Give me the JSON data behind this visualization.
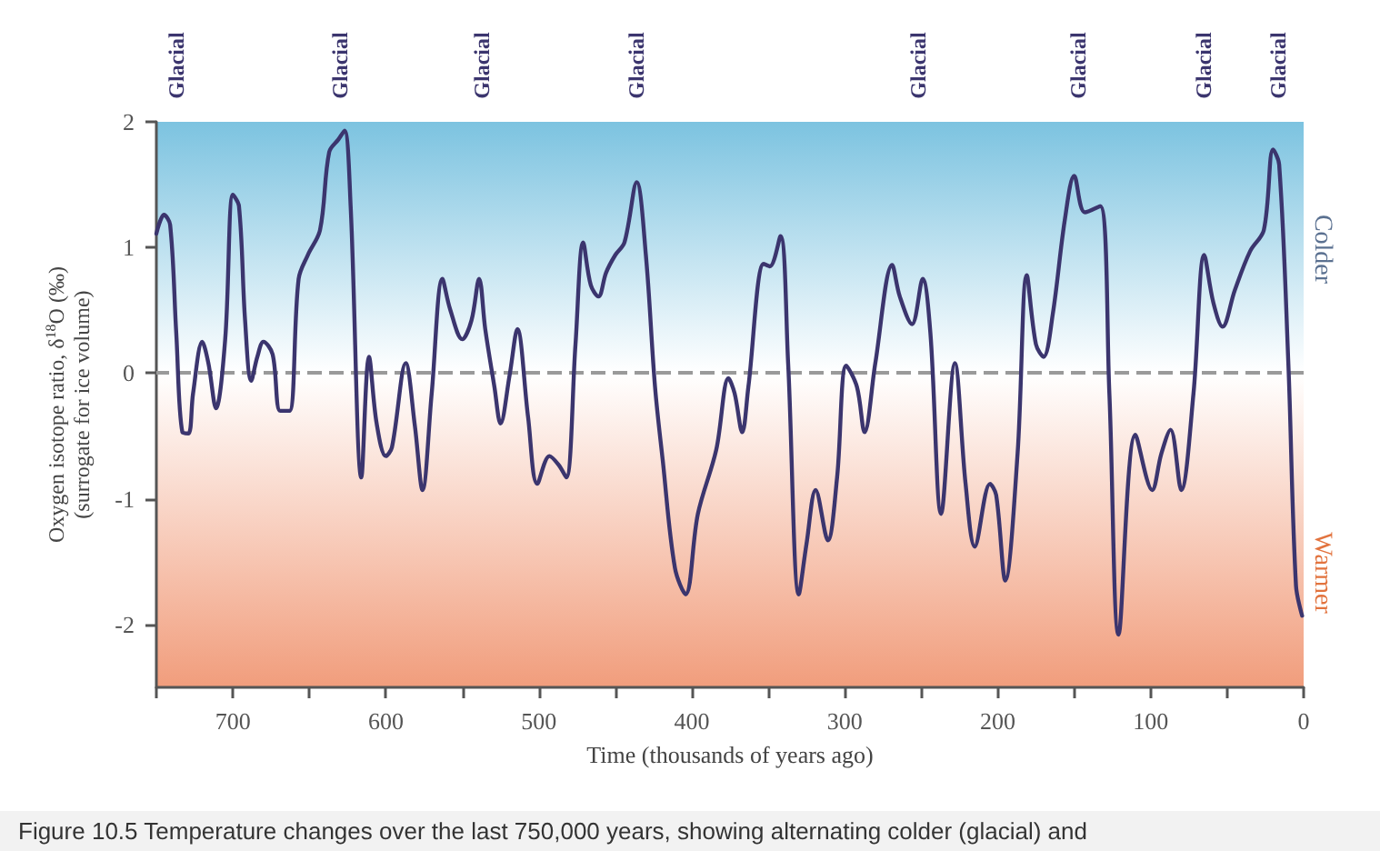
{
  "chart_data": {
    "type": "line",
    "xlabel": "Time (thousands of years ago)",
    "ylabel": "Oxygen isotope ratio, δ$^{18}$O (‰)\n(surrogate for ice volume)",
    "xlim": [
      750,
      0
    ],
    "xticks": [
      {
        "value": 750,
        "label": null
      },
      700,
      {
        "value": 650,
        "label": null
      },
      600,
      {
        "value": 550,
        "label": null
      },
      500,
      {
        "value": 450,
        "label": null
      },
      400,
      {
        "value": 350,
        "label": null
      },
      300,
      {
        "value": 250,
        "label": null
      },
      200,
      {
        "value": 150,
        "label": null
      },
      100,
      {
        "value": 50,
        "label": null
      },
      0
    ],
    "ylim": [
      -2.5,
      2
    ],
    "yticks": [
      -2,
      -1,
      0,
      1,
      2
    ],
    "grid": false,
    "marker": "none",
    "line_style": "solid",
    "ref_lines": [
      {
        "axis": "y",
        "value": 0,
        "color": "#9a9a9a",
        "line_style": "dashed"
      }
    ],
    "bands": [
      {
        "axis": "y",
        "from": 0,
        "to": 2,
        "color": "#7cc3e0"
      },
      {
        "axis": "y",
        "from": -2.5,
        "to": 0,
        "color": "#f19d7c"
      }
    ],
    "annotations": [
      "Colder",
      "Warmer",
      "Figure 10.5 Temperature changes over the last 750,000 years, showing alternating colder (glacial) and",
      "Glacial",
      "Glacial",
      "Glacial",
      "Glacial",
      "Glacial",
      "Glacial",
      "Glacial",
      "Glacial"
    ],
    "series": [
      {
        "color": "#3b356e",
        "x": [
          750,
          745,
          741,
          737,
          733,
          729,
          726,
          720,
          716,
          711,
          705,
          700,
          696,
          692,
          688,
          684,
          680,
          674,
          669,
          663,
          657,
          651,
          643,
          637,
          631,
          627,
          623,
          616,
          611,
          606,
          600,
          596,
          587,
          581,
          576,
          570,
          563,
          558,
          550,
          544,
          539,
          535,
          529,
          525,
          519,
          514,
          507,
          501,
          493,
          487,
          482,
          476,
          471,
          466,
          461,
          456,
          450,
          444,
          436,
          430,
          424,
          419,
          411,
          404,
          396,
          384,
          376,
          372,
          367,
          363,
          353,
          349,
          342,
          337,
          330,
          325,
          319,
          311,
          305,
          299,
          292,
          287,
          280,
          269,
          264,
          256,
          249,
          244,
          237,
          228,
          221,
          215,
          205,
          201,
          195,
          187,
          181,
          175,
          170,
          164,
          156,
          150,
          143,
          133,
          127,
          121,
          110,
          99,
          93,
          87,
          80,
          72,
          65,
          59,
          53,
          45,
          35,
          26,
          20,
          16,
          10,
          5,
          1
        ],
        "values": [
          1.11,
          1.26,
          1.18,
          0.32,
          -0.47,
          -0.48,
          -0.16,
          0.25,
          0.08,
          -0.28,
          0.27,
          1.42,
          1.33,
          0.42,
          -0.06,
          0.13,
          0.25,
          0.15,
          -0.3,
          -0.3,
          0.75,
          0.94,
          1.14,
          1.76,
          1.86,
          1.93,
          1.33,
          -0.83,
          0.13,
          -0.4,
          -0.66,
          -0.59,
          0.08,
          -0.42,
          -0.93,
          -0.16,
          0.75,
          0.51,
          0.27,
          0.42,
          0.75,
          0.35,
          -0.11,
          -0.4,
          -0.01,
          0.35,
          -0.35,
          -0.88,
          -0.66,
          -0.73,
          -0.83,
          0.23,
          1.04,
          0.7,
          0.61,
          0.8,
          0.94,
          1.04,
          1.52,
          0.94,
          -0.11,
          -0.69,
          -1.55,
          -1.76,
          -1.12,
          -0.61,
          -0.04,
          -0.16,
          -0.47,
          -0.11,
          0.87,
          0.85,
          1.09,
          0.08,
          -1.76,
          -1.36,
          -0.93,
          -1.33,
          -0.83,
          0.06,
          -0.11,
          -0.47,
          0.08,
          0.86,
          0.61,
          0.39,
          0.75,
          0.32,
          -1.12,
          0.08,
          -0.88,
          -1.38,
          -0.88,
          -0.97,
          -1.65,
          -0.64,
          0.78,
          0.23,
          0.13,
          0.47,
          1.23,
          1.57,
          1.28,
          1.33,
          -0.16,
          -2.08,
          -0.49,
          -0.93,
          -0.64,
          -0.45,
          -0.93,
          -0.16,
          0.94,
          0.56,
          0.37,
          0.66,
          0.97,
          1.14,
          1.78,
          1.66,
          0.08,
          -1.69,
          -1.93
        ]
      }
    ]
  }
}
